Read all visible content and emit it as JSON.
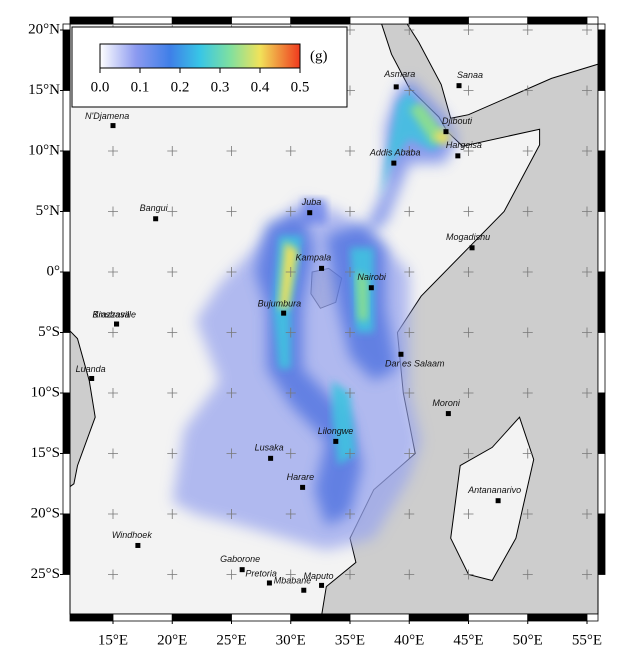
{
  "map": {
    "colorbar": {
      "unit": "(g)",
      "ticks": [
        {
          "value": 0,
          "label": "0.0"
        },
        {
          "value": 0.1,
          "label": "0.1"
        },
        {
          "value": 0.2,
          "label": "0.2"
        },
        {
          "value": 0.3,
          "label": "0.3"
        },
        {
          "value": 0.4,
          "label": "0.4"
        },
        {
          "value": 0.5,
          "label": "0.5"
        }
      ]
    },
    "latitude_ticks": [
      {
        "value": 20,
        "label": "20°N"
      },
      {
        "value": 15,
        "label": "15°N"
      },
      {
        "value": 10,
        "label": "10°N"
      },
      {
        "value": 5,
        "label": "5°N"
      },
      {
        "value": 0,
        "label": "0°"
      },
      {
        "value": -5,
        "label": "5°S"
      },
      {
        "value": -10,
        "label": "10°S"
      },
      {
        "value": -15,
        "label": "15°S"
      },
      {
        "value": -20,
        "label": "20°S"
      },
      {
        "value": -25,
        "label": "25°S"
      }
    ],
    "longitude_ticks": [
      {
        "value": 15,
        "label": "15°E"
      },
      {
        "value": 20,
        "label": "20°E"
      },
      {
        "value": 25,
        "label": "25°E"
      },
      {
        "value": 30,
        "label": "30°E"
      },
      {
        "value": 35,
        "label": "35°E"
      },
      {
        "value": 40,
        "label": "40°E"
      },
      {
        "value": 45,
        "label": "45°E"
      },
      {
        "value": 50,
        "label": "50°E"
      },
      {
        "value": 55,
        "label": "55°E"
      }
    ],
    "cities": [
      "Asmara",
      "Sanaa",
      "Djibouti",
      "Hargeisa",
      "Addis Ababa",
      "N'Djamena",
      "Juba",
      "Bangui",
      "Mogadishu",
      "Kampala",
      "Nairobi",
      "Bujumbura",
      "Brazzaville",
      "Kinshasa",
      "Dar es Salaam",
      "Luanda",
      "Moroni",
      "Lilongwe",
      "Lusaka",
      "Harare",
      "Antananarivo",
      "Windhoek",
      "Gaborone",
      "Pretoria",
      "Maputo",
      "Mbabane"
    ]
  }
}
